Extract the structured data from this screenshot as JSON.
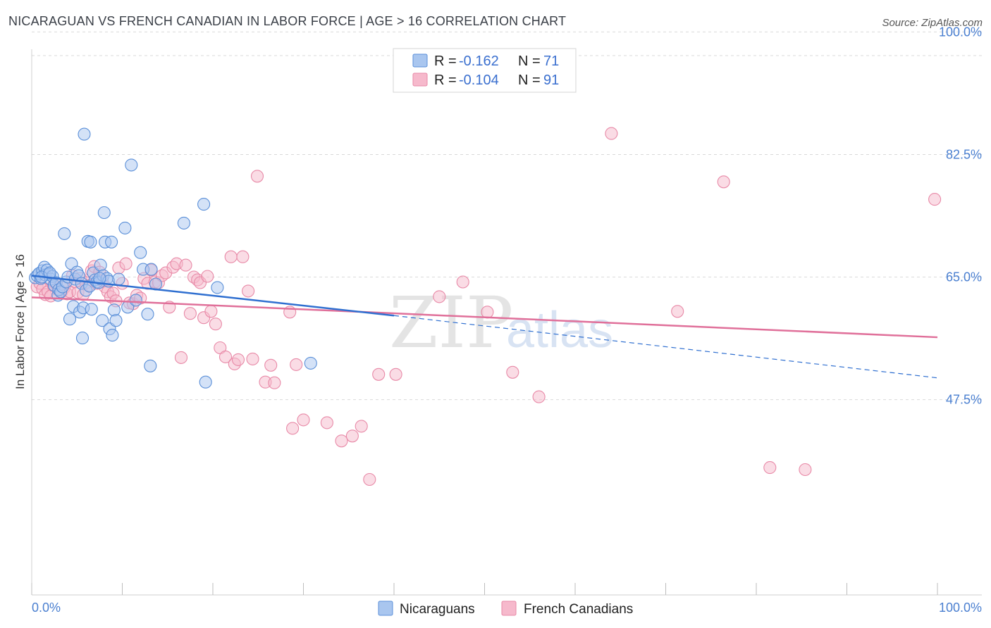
{
  "header": {
    "title": "NICARAGUAN VS FRENCH CANADIAN IN LABOR FORCE | AGE > 16 CORRELATION CHART",
    "source": "Source: ZipAtlas.com"
  },
  "watermark": {
    "zip": "ZIP",
    "atlas": "atlas"
  },
  "legend": {
    "rows": [
      {
        "r_label": "R =",
        "r_value": "-0.162",
        "n_label": "N =",
        "n_value": "71",
        "color": "#a9c6ef"
      },
      {
        "r_label": "R =",
        "r_value": "-0.104",
        "n_label": "N =",
        "n_value": "91",
        "color": "#f6b9cc"
      }
    ]
  },
  "bottom_legend": {
    "nicaraguans": "Nicaraguans",
    "french_canadians": "French Canadians"
  },
  "colors": {
    "blue_fill": "#a9c6ef",
    "blue_stroke": "#5a8fd8",
    "blue_line": "#2f6fd0",
    "pink_fill": "#f6b9cc",
    "pink_stroke": "#e889a7",
    "pink_line": "#e0709a",
    "axis_text": "#4a7fd0",
    "grid": "#d9d9d9"
  },
  "chart_data": {
    "type": "scatter",
    "title": "NICARAGUAN VS FRENCH CANADIAN IN LABOR FORCE | AGE > 16 CORRELATION CHART",
    "xlabel": "",
    "ylabel": "In Labor Force | Age > 16",
    "xlim": [
      0,
      100
    ],
    "ylim": [
      30,
      103
    ],
    "x_tick_labels": [
      "0.0%",
      "100.0%"
    ],
    "y_ticks": [
      47.5,
      65.0,
      82.5,
      100.0
    ],
    "y_tick_labels": [
      "47.5%",
      "65.0%",
      "82.5%",
      "100.0%"
    ],
    "grid": true,
    "series": [
      {
        "name": "Nicaraguans",
        "r": -0.162,
        "n": 71,
        "trend": {
          "x0": 0,
          "y0": 65.2,
          "x1": 40,
          "y1": 59.5,
          "dash_to_x": 100,
          "dash_to_y": 50.6
        },
        "points": [
          [
            0.4,
            64.9
          ],
          [
            0.6,
            65.2
          ],
          [
            0.8,
            65.5
          ],
          [
            1.0,
            64.8
          ],
          [
            1.2,
            65.9
          ],
          [
            1.4,
            66.4
          ],
          [
            1.5,
            65.3
          ],
          [
            1.7,
            66.0
          ],
          [
            1.9,
            65.4
          ],
          [
            2.1,
            64.7
          ],
          [
            2.3,
            65.1
          ],
          [
            2.5,
            63.8
          ],
          [
            2.7,
            64.2
          ],
          [
            2.9,
            62.4
          ],
          [
            3.0,
            63.2
          ],
          [
            3.2,
            62.9
          ],
          [
            3.4,
            63.6
          ],
          [
            3.6,
            71.2
          ],
          [
            3.8,
            64.3
          ],
          [
            4.0,
            65.0
          ],
          [
            4.2,
            59.0
          ],
          [
            4.4,
            66.9
          ],
          [
            4.6,
            60.8
          ],
          [
            4.8,
            64.7
          ],
          [
            5.0,
            65.7
          ],
          [
            5.2,
            65.2
          ],
          [
            5.3,
            60.0
          ],
          [
            5.5,
            64.1
          ],
          [
            5.6,
            56.3
          ],
          [
            5.7,
            60.6
          ],
          [
            5.8,
            85.4
          ],
          [
            6.0,
            63.1
          ],
          [
            6.2,
            70.1
          ],
          [
            6.4,
            63.7
          ],
          [
            6.5,
            70.0
          ],
          [
            6.6,
            60.4
          ],
          [
            6.8,
            65.6
          ],
          [
            7.0,
            64.6
          ],
          [
            7.2,
            64.3
          ],
          [
            7.4,
            64.2
          ],
          [
            7.6,
            66.7
          ],
          [
            7.8,
            58.8
          ],
          [
            7.9,
            65.2
          ],
          [
            8.0,
            74.2
          ],
          [
            8.1,
            70.0
          ],
          [
            8.3,
            64.8
          ],
          [
            8.5,
            64.4
          ],
          [
            8.6,
            57.6
          ],
          [
            8.8,
            70.0
          ],
          [
            8.9,
            56.7
          ],
          [
            9.1,
            60.3
          ],
          [
            9.3,
            58.8
          ],
          [
            9.6,
            64.7
          ],
          [
            10.3,
            72.0
          ],
          [
            10.6,
            60.7
          ],
          [
            11.0,
            81.0
          ],
          [
            11.5,
            61.7
          ],
          [
            12.0,
            68.5
          ],
          [
            12.3,
            66.1
          ],
          [
            12.8,
            59.7
          ],
          [
            13.1,
            52.3
          ],
          [
            13.2,
            66.1
          ],
          [
            13.7,
            64.0
          ],
          [
            16.8,
            72.7
          ],
          [
            19.0,
            75.4
          ],
          [
            20.5,
            63.5
          ],
          [
            30.8,
            52.7
          ],
          [
            19.2,
            50.0
          ],
          [
            7.5,
            64.8
          ],
          [
            1.1,
            65.0
          ],
          [
            2.0,
            65.6
          ]
        ]
      },
      {
        "name": "French Canadians",
        "r": -0.104,
        "n": 91,
        "trend": {
          "x0": 0,
          "y0": 62.1,
          "x1": 100,
          "y1": 56.4
        },
        "points": [
          [
            0.6,
            63.6
          ],
          [
            0.9,
            64.1
          ],
          [
            1.2,
            63.3
          ],
          [
            1.5,
            62.5
          ],
          [
            1.8,
            62.9
          ],
          [
            2.1,
            62.3
          ],
          [
            2.4,
            63.8
          ],
          [
            2.7,
            64.0
          ],
          [
            3.0,
            63.1
          ],
          [
            3.3,
            62.9
          ],
          [
            3.6,
            63.5
          ],
          [
            3.9,
            62.6
          ],
          [
            4.2,
            62.9
          ],
          [
            4.5,
            65.2
          ],
          [
            4.8,
            64.3
          ],
          [
            5.1,
            62.8
          ],
          [
            5.4,
            64.8
          ],
          [
            5.7,
            62.5
          ],
          [
            6.0,
            64.2
          ],
          [
            6.3,
            63.8
          ],
          [
            6.6,
            65.9
          ],
          [
            6.9,
            66.5
          ],
          [
            7.2,
            64.1
          ],
          [
            7.5,
            65.7
          ],
          [
            7.8,
            64.5
          ],
          [
            8.1,
            63.6
          ],
          [
            8.4,
            62.9
          ],
          [
            8.7,
            62.2
          ],
          [
            9.0,
            62.7
          ],
          [
            9.3,
            61.6
          ],
          [
            9.6,
            66.3
          ],
          [
            10.0,
            64.1
          ],
          [
            10.4,
            66.9
          ],
          [
            10.8,
            61.3
          ],
          [
            11.2,
            61.2
          ],
          [
            11.6,
            62.4
          ],
          [
            12.0,
            62.0
          ],
          [
            12.4,
            64.8
          ],
          [
            12.8,
            64.1
          ],
          [
            13.2,
            66.0
          ],
          [
            13.6,
            64.3
          ],
          [
            14.0,
            64.2
          ],
          [
            14.4,
            65.2
          ],
          [
            14.8,
            65.6
          ],
          [
            15.2,
            60.7
          ],
          [
            15.6,
            66.4
          ],
          [
            16.0,
            66.9
          ],
          [
            16.5,
            53.5
          ],
          [
            17.0,
            66.7
          ],
          [
            17.5,
            59.8
          ],
          [
            17.9,
            65.0
          ],
          [
            18.3,
            64.6
          ],
          [
            18.6,
            64.2
          ],
          [
            19.0,
            59.2
          ],
          [
            19.4,
            65.1
          ],
          [
            19.8,
            60.1
          ],
          [
            20.3,
            58.3
          ],
          [
            20.8,
            54.9
          ],
          [
            21.4,
            53.6
          ],
          [
            22.0,
            67.9
          ],
          [
            22.4,
            52.6
          ],
          [
            22.8,
            53.2
          ],
          [
            23.3,
            67.9
          ],
          [
            23.9,
            63.0
          ],
          [
            24.4,
            53.3
          ],
          [
            24.9,
            79.4
          ],
          [
            25.8,
            50.0
          ],
          [
            26.4,
            52.4
          ],
          [
            26.8,
            49.9
          ],
          [
            28.5,
            60.0
          ],
          [
            29.2,
            52.5
          ],
          [
            28.8,
            43.4
          ],
          [
            30.0,
            44.6
          ],
          [
            32.6,
            44.2
          ],
          [
            34.2,
            41.6
          ],
          [
            35.4,
            42.3
          ],
          [
            36.4,
            43.7
          ],
          [
            37.3,
            36.1
          ],
          [
            38.3,
            51.1
          ],
          [
            40.2,
            51.1
          ],
          [
            45.0,
            62.2
          ],
          [
            47.6,
            64.3
          ],
          [
            50.3,
            60.0
          ],
          [
            53.1,
            51.4
          ],
          [
            56.0,
            47.9
          ],
          [
            64.0,
            85.5
          ],
          [
            71.3,
            60.1
          ],
          [
            76.4,
            78.6
          ],
          [
            81.5,
            37.8
          ],
          [
            85.4,
            37.5
          ],
          [
            99.7,
            76.1
          ]
        ]
      }
    ]
  }
}
